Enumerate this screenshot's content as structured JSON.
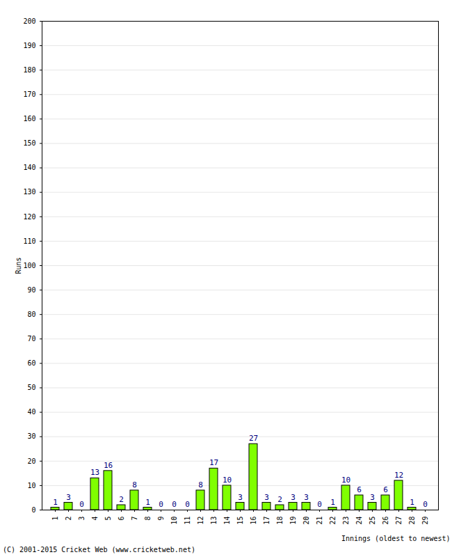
{
  "chart_data": {
    "type": "bar",
    "categories": [
      "1",
      "2",
      "3",
      "4",
      "5",
      "6",
      "7",
      "8",
      "9",
      "10",
      "11",
      "12",
      "13",
      "14",
      "15",
      "16",
      "17",
      "18",
      "19",
      "20",
      "21",
      "22",
      "23",
      "24",
      "25",
      "26",
      "27",
      "28",
      "29"
    ],
    "values": [
      1,
      3,
      0,
      13,
      16,
      2,
      8,
      1,
      0,
      0,
      0,
      8,
      17,
      10,
      3,
      27,
      3,
      2,
      3,
      3,
      0,
      1,
      10,
      6,
      3,
      6,
      12,
      1,
      0
    ],
    "color": "#80ff00",
    "x_label": "Innings (oldest to newest)",
    "y_label": "Runs",
    "ylim": [
      0,
      200
    ],
    "yticks": [
      0,
      10,
      20,
      30,
      40,
      50,
      60,
      70,
      80,
      90,
      100,
      110,
      120,
      130,
      140,
      150,
      160,
      170,
      180,
      190,
      200
    ],
    "grid": true,
    "data_labels": true,
    "annotations": [
      "(C) 2001-2015 Cricket Web (www.cricketweb.net)"
    ]
  }
}
